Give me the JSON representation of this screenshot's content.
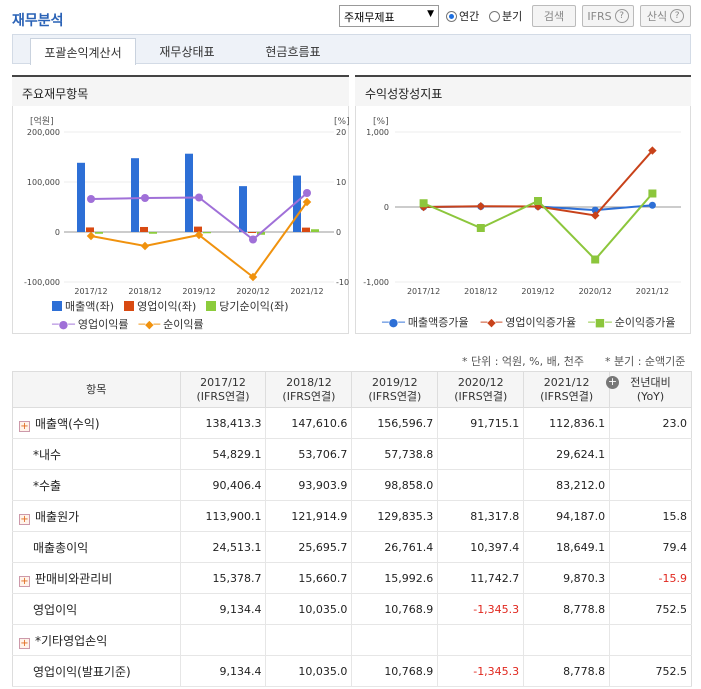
{
  "header": {
    "title": "재무분석",
    "select_value": "주재무제표",
    "radio_annual": "연간",
    "radio_quarter": "분기",
    "search_label": "검색",
    "ifrs_label": "IFRS",
    "formula_label": "산식"
  },
  "tabs": [
    "포괄손익계산서",
    "재무상태표",
    "현금흐름표"
  ],
  "panels": {
    "left_title": "주요재무항목",
    "right_title": "수익성장성지표"
  },
  "chart_data": [
    {
      "type": "bar",
      "categories": [
        "2017/12",
        "2018/12",
        "2019/12",
        "2020/12",
        "2021/12"
      ],
      "y_left_unit": "[억원]",
      "y_right_unit": "[%]",
      "ylim_left": [
        -100000,
        200000
      ],
      "ylim_right": [
        -10,
        20
      ],
      "y_left_ticks": [
        "200,000",
        "100,000",
        "0",
        "-100,000"
      ],
      "y_right_ticks": [
        "20",
        "10",
        "0",
        "-10"
      ],
      "series": [
        {
          "name": "매출액(좌)",
          "kind": "bar",
          "axis": "left",
          "color": "#2d6fd6",
          "values": [
            138413.3,
            147610.6,
            156596.7,
            91715.1,
            112836.1
          ]
        },
        {
          "name": "영업이익(좌)",
          "kind": "bar",
          "axis": "left",
          "color": "#d84a12",
          "values": [
            9134.4,
            10035.0,
            10768.9,
            -1345.3,
            8778.8
          ]
        },
        {
          "name": "당기순이익(좌)",
          "kind": "bar",
          "axis": "left",
          "color": "#8ccc3c",
          "values": [
            -3500,
            -3500,
            -2500,
            -5500,
            5500
          ]
        },
        {
          "name": "영업이익률",
          "kind": "line",
          "axis": "right",
          "color": "#a070d8",
          "values": [
            6.6,
            6.8,
            6.9,
            -1.5,
            7.8
          ]
        },
        {
          "name": "순이익률",
          "kind": "line",
          "axis": "right",
          "color": "#f0920e",
          "values": [
            -0.8,
            -2.8,
            -0.6,
            -9.0,
            6.0
          ]
        }
      ]
    },
    {
      "type": "line",
      "categories": [
        "2017/12",
        "2018/12",
        "2019/12",
        "2020/12",
        "2021/12"
      ],
      "y_unit": "[%]",
      "ylim": [
        -1000,
        1000
      ],
      "y_ticks": [
        "1,000",
        "0",
        "-1,000"
      ],
      "series": [
        {
          "name": "매출액증가율",
          "color": "#2d6fd6",
          "marker": "circle",
          "values": [
            0,
            6.6,
            6.1,
            -41.4,
            23.0
          ]
        },
        {
          "name": "영업이익증가율",
          "color": "#c8421a",
          "marker": "diamond",
          "values": [
            0,
            9.9,
            7.3,
            -112.5,
            752.5
          ]
        },
        {
          "name": "순이익증가율",
          "color": "#8cc63c",
          "marker": "square",
          "values": [
            50,
            -280,
            80,
            -700,
            180
          ]
        }
      ]
    }
  ],
  "table": {
    "units_note": "* 단위 : 억원, %, 배, 천주",
    "quarter_note": "* 분기 : 순액기준",
    "headers": [
      {
        "a": "항목",
        "b": ""
      },
      {
        "a": "2017/12",
        "b": "(IFRS연결)"
      },
      {
        "a": "2018/12",
        "b": "(IFRS연결)"
      },
      {
        "a": "2019/12",
        "b": "(IFRS연결)"
      },
      {
        "a": "2020/12",
        "b": "(IFRS연결)"
      },
      {
        "a": "2021/12",
        "b": "(IFRS연결)"
      },
      {
        "a": "전년대비",
        "b": "(YoY)"
      }
    ],
    "rows": [
      {
        "label": "매출액(수익)",
        "expand": true,
        "indent": false,
        "v": [
          "138,413.3",
          "147,610.6",
          "156,596.7",
          "91,715.1",
          "112,836.1",
          "23.0"
        ],
        "neg": [
          false,
          false,
          false,
          false,
          false,
          false
        ]
      },
      {
        "label": "*내수",
        "expand": false,
        "indent": true,
        "v": [
          "54,829.1",
          "53,706.7",
          "57,738.8",
          "",
          "29,624.1",
          ""
        ],
        "neg": [
          false,
          false,
          false,
          false,
          false,
          false
        ]
      },
      {
        "label": "*수출",
        "expand": false,
        "indent": true,
        "v": [
          "90,406.4",
          "93,903.9",
          "98,858.0",
          "",
          "83,212.0",
          ""
        ],
        "neg": [
          false,
          false,
          false,
          false,
          false,
          false
        ]
      },
      {
        "label": "매출원가",
        "expand": true,
        "indent": false,
        "v": [
          "113,900.1",
          "121,914.9",
          "129,835.3",
          "81,317.8",
          "94,187.0",
          "15.8"
        ],
        "neg": [
          false,
          false,
          false,
          false,
          false,
          false
        ]
      },
      {
        "label": "매출총이익",
        "expand": false,
        "indent": true,
        "v": [
          "24,513.1",
          "25,695.7",
          "26,761.4",
          "10,397.4",
          "18,649.1",
          "79.4"
        ],
        "neg": [
          false,
          false,
          false,
          false,
          false,
          false
        ]
      },
      {
        "label": "판매비와관리비",
        "expand": true,
        "indent": false,
        "v": [
          "15,378.7",
          "15,660.7",
          "15,992.6",
          "11,742.7",
          "9,870.3",
          "-15.9"
        ],
        "neg": [
          false,
          false,
          false,
          false,
          false,
          true
        ]
      },
      {
        "label": "영업이익",
        "expand": false,
        "indent": true,
        "v": [
          "9,134.4",
          "10,035.0",
          "10,768.9",
          "-1,345.3",
          "8,778.8",
          "752.5"
        ],
        "neg": [
          false,
          false,
          false,
          true,
          false,
          false
        ]
      },
      {
        "label": "*기타영업손익",
        "expand": true,
        "indent": false,
        "v": [
          "",
          "",
          "",
          "",
          "",
          ""
        ],
        "neg": [
          false,
          false,
          false,
          false,
          false,
          false
        ]
      },
      {
        "label": "영업이익(발표기준)",
        "expand": false,
        "indent": true,
        "v": [
          "9,134.4",
          "10,035.0",
          "10,768.9",
          "-1,345.3",
          "8,778.8",
          "752.5"
        ],
        "neg": [
          false,
          false,
          false,
          true,
          false,
          false
        ]
      }
    ]
  }
}
